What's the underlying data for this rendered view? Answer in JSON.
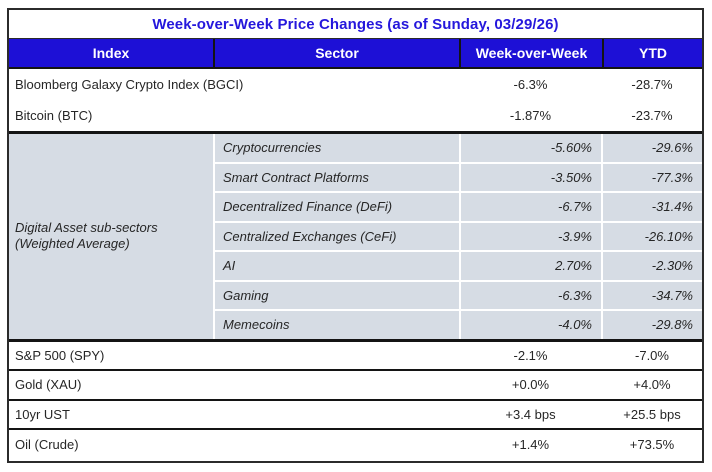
{
  "title": "Week-over-Week Price Changes (as of Sunday, 03/29/26)",
  "columns": {
    "index": "Index",
    "sector": "Sector",
    "wow": "Week-over-Week",
    "ytd": "YTD"
  },
  "top_rows": [
    {
      "label": "Bloomberg Galaxy Crypto Index (BGCI)",
      "wow": "-6.3%",
      "ytd": "-28.7%"
    },
    {
      "label": "Bitcoin (BTC)",
      "wow": "-1.87%",
      "ytd": "-23.7%"
    }
  ],
  "subsector_group": {
    "label_line1": "Digital Asset sub-sectors",
    "label_line2": "(Weighted Average)",
    "rows": [
      {
        "sector": "Cryptocurrencies",
        "wow": "-5.60%",
        "ytd": "-29.6%"
      },
      {
        "sector": "Smart Contract Platforms",
        "wow": "-3.50%",
        "ytd": "-77.3%"
      },
      {
        "sector": "Decentralized Finance (DeFi)",
        "wow": "-6.7%",
        "ytd": "-31.4%"
      },
      {
        "sector": "Centralized Exchanges (CeFi)",
        "wow": "-3.9%",
        "ytd": "-26.10%"
      },
      {
        "sector": "AI",
        "wow": "2.70%",
        "ytd": "-2.30%"
      },
      {
        "sector": "Gaming",
        "wow": "-6.3%",
        "ytd": "-34.7%"
      },
      {
        "sector": "Memecoins",
        "wow": "-4.0%",
        "ytd": "-29.8%"
      }
    ]
  },
  "macro_rows": [
    {
      "label": "S&P 500 (SPY)",
      "wow": "-2.1%",
      "ytd": "-7.0%"
    },
    {
      "label": "Gold (XAU)",
      "wow": "+0.0%",
      "ytd": "+4.0%"
    },
    {
      "label": "10yr UST",
      "wow": "+3.4 bps",
      "ytd": "+25.5 bps"
    },
    {
      "label": "Oil (Crude)",
      "wow": "+1.4%",
      "ytd": "+73.5%"
    }
  ],
  "colors": {
    "header_bg": "#1D10D6",
    "title_text": "#2517DC",
    "subsector_bg": "#D6DCE4",
    "border": "#141414",
    "header_text": "#FFFFFF"
  },
  "chart_data": {
    "type": "table",
    "title": "Week-over-Week Price Changes (as of Sunday, 03/29/26)",
    "columns": [
      "Index",
      "Sector",
      "Week-over-Week",
      "YTD"
    ],
    "rows": [
      [
        "Bloomberg Galaxy Crypto Index (BGCI)",
        "",
        "-6.3%",
        "-28.7%"
      ],
      [
        "Bitcoin (BTC)",
        "",
        "-1.87%",
        "-23.7%"
      ],
      [
        "Digital Asset sub-sectors (Weighted Average)",
        "Cryptocurrencies",
        "-5.60%",
        "-29.6%"
      ],
      [
        "Digital Asset sub-sectors (Weighted Average)",
        "Smart Contract Platforms",
        "-3.50%",
        "-77.3%"
      ],
      [
        "Digital Asset sub-sectors (Weighted Average)",
        "Decentralized Finance (DeFi)",
        "-6.7%",
        "-31.4%"
      ],
      [
        "Digital Asset sub-sectors (Weighted Average)",
        "Centralized Exchanges (CeFi)",
        "-3.9%",
        "-26.10%"
      ],
      [
        "Digital Asset sub-sectors (Weighted Average)",
        "AI",
        "2.70%",
        "-2.30%"
      ],
      [
        "Digital Asset sub-sectors (Weighted Average)",
        "Gaming",
        "-6.3%",
        "-34.7%"
      ],
      [
        "Digital Asset sub-sectors (Weighted Average)",
        "Memecoins",
        "-4.0%",
        "-29.8%"
      ],
      [
        "S&P 500 (SPY)",
        "",
        "-2.1%",
        "-7.0%"
      ],
      [
        "Gold (XAU)",
        "",
        "+0.0%",
        "+4.0%"
      ],
      [
        "10yr UST",
        "",
        "+3.4 bps",
        "+25.5 bps"
      ],
      [
        "Oil (Crude)",
        "",
        "+1.4%",
        "+73.5%"
      ]
    ]
  }
}
